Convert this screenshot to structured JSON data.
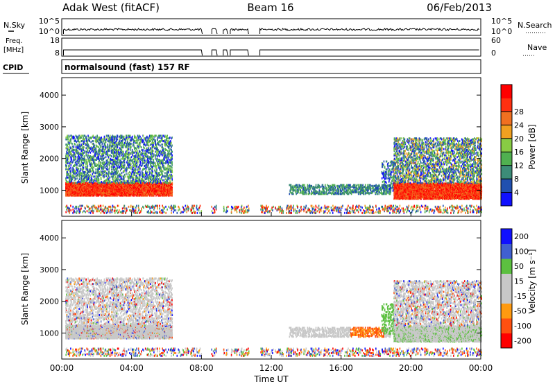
{
  "header": {
    "station": "Adak West (fitACF)",
    "beam": "Beam 16",
    "date": "06/Feb/2013"
  },
  "strip_panels": {
    "nsky": {
      "label": "N.Sky",
      "yticks": [
        "10^5",
        "10^0"
      ],
      "right_label": "N.Search",
      "right_yticks": [
        "10^5",
        "10^0"
      ],
      "legend_marker": "solid"
    },
    "freq": {
      "label_line1": "Freq.",
      "label_line2": "[MHz]",
      "yticks": [
        "18",
        "8"
      ],
      "right_label": "Nave",
      "right_yticks": [
        "60",
        "0"
      ],
      "legend_marker": "solid"
    },
    "cpid": {
      "label": "CPID",
      "text": "normalsound (fast) 157 RF"
    }
  },
  "colors": {
    "power": [
      "#1010ff",
      "#2050b0",
      "#3c8c78",
      "#50b050",
      "#88cc44",
      "#f0a020",
      "#f07020",
      "#ff3010",
      "#ff0000"
    ],
    "velocity": [
      "#ff0000",
      "#ff5010",
      "#ff9a10",
      "#c8c8c8",
      "#c8c8c8",
      "#5cc040",
      "#4060d0",
      "#1010ff"
    ]
  },
  "chart_data": [
    {
      "type": "heatmap",
      "name": "power",
      "ylabel": "Slant Range [km]",
      "yticks": [
        1000,
        2000,
        3000,
        4000
      ],
      "ylim": [
        180,
        4550
      ],
      "xlim": [
        0,
        24
      ],
      "colorbar_label": "Power [dB]",
      "colorbar_ticks": [
        "4",
        "8",
        "12",
        "16",
        "20",
        "24",
        "28"
      ],
      "colorbar_range": [
        0,
        30
      ],
      "features": [
        {
          "desc": "scatter band",
          "t_range": [
            0.2,
            6.3
          ],
          "range_km": [
            800,
            1200
          ],
          "value": "20-30 dB"
        },
        {
          "desc": "weak scatter",
          "t_range": [
            0.2,
            6.3
          ],
          "range_km": [
            1200,
            2700
          ],
          "value": "4-12 dB"
        },
        {
          "desc": "scatter band",
          "t_range": [
            13.0,
            18.8
          ],
          "range_km": [
            850,
            1150
          ],
          "value": "8-16 dB"
        },
        {
          "desc": "scatter band",
          "t_range": [
            19.0,
            24.0
          ],
          "range_km": [
            700,
            1200
          ],
          "value": "20-30 dB"
        },
        {
          "desc": "weak scatter",
          "t_range": [
            19.0,
            24.0
          ],
          "range_km": [
            1200,
            2600
          ],
          "value": "4-16 dB"
        }
      ]
    },
    {
      "type": "heatmap",
      "name": "velocity",
      "ylabel": "Slant Range [km]",
      "yticks": [
        1000,
        2000,
        3000,
        4000
      ],
      "ylim": [
        180,
        4550
      ],
      "xlim": [
        0,
        24
      ],
      "xticks": [
        "00:00",
        "04:00",
        "08:00",
        "12:00",
        "16:00",
        "20:00",
        "00:00"
      ],
      "xlabel": "Time UT",
      "colorbar_label": "Velocity [m s⁻¹]",
      "colorbar_ticks": [
        "-200",
        "-100",
        "-50",
        "-15",
        "15",
        "50",
        "100",
        "200"
      ],
      "features": [
        {
          "desc": "mostly ground scatter",
          "t_range": [
            0.2,
            6.3
          ],
          "range_km": [
            800,
            2700
          ],
          "value": "-15 to 15 m/s"
        },
        {
          "desc": "approaching echoes",
          "t_range": [
            16.5,
            18.4
          ],
          "range_km": [
            900,
            1200
          ],
          "value": "-50 to -100 m/s"
        },
        {
          "desc": "receding echoes",
          "t_range": [
            18.3,
            19.0
          ],
          "range_km": [
            950,
            1900
          ],
          "value": "15 to 50 m/s"
        },
        {
          "desc": "mixed echoes",
          "t_range": [
            19.0,
            24.0
          ],
          "range_km": [
            700,
            2600
          ],
          "value": "-15 to 50 m/s"
        }
      ]
    }
  ]
}
